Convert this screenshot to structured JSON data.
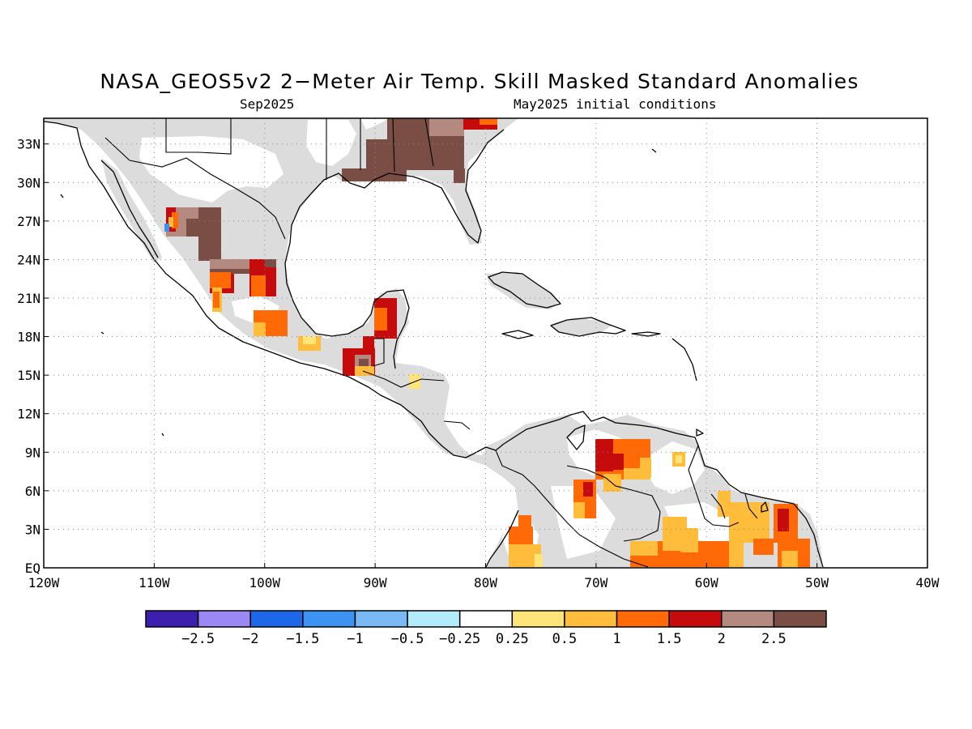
{
  "title": "NASA_GEOS5v2 2−Meter Air Temp. Skill Masked Standard Anomalies",
  "subtitle_left": "Sep2025",
  "subtitle_right": "May2025 initial conditions",
  "map": {
    "lon_range": [
      -120,
      -40
    ],
    "lat_range": [
      0,
      35
    ],
    "lat_labels": [
      "33N",
      "30N",
      "27N",
      "24N",
      "21N",
      "18N",
      "15N",
      "12N",
      "9N",
      "6N",
      "3N",
      "EQ"
    ],
    "lat_values": [
      33,
      30,
      27,
      24,
      21,
      18,
      15,
      12,
      9,
      6,
      3,
      0
    ],
    "lon_labels": [
      "120W",
      "110W",
      "100W",
      "90W",
      "80W",
      "70W",
      "60W",
      "50W",
      "40W"
    ],
    "lon_values": [
      -120,
      -110,
      -100,
      -90,
      -80,
      -70,
      -60,
      -50,
      -40
    ],
    "grid": "dotted",
    "masked_color": "#dcdcdc",
    "coast_color": "#000000"
  },
  "colorbar": {
    "labels": [
      "−2.5",
      "−2",
      "−1.5",
      "−1",
      "−0.5",
      "−0.25",
      "0.25",
      "0.5",
      "1",
      "1.5",
      "2",
      "2.5"
    ],
    "colors": [
      "#3c1fae",
      "#9b88f5",
      "#1d67e8",
      "#3c93f2",
      "#79b9f5",
      "#b2ecfb",
      "#ffffff",
      "#ffe47a",
      "#ffbd3b",
      "#ff6a06",
      "#c50b0b",
      "#b48a80",
      "#7b4e45"
    ]
  }
}
